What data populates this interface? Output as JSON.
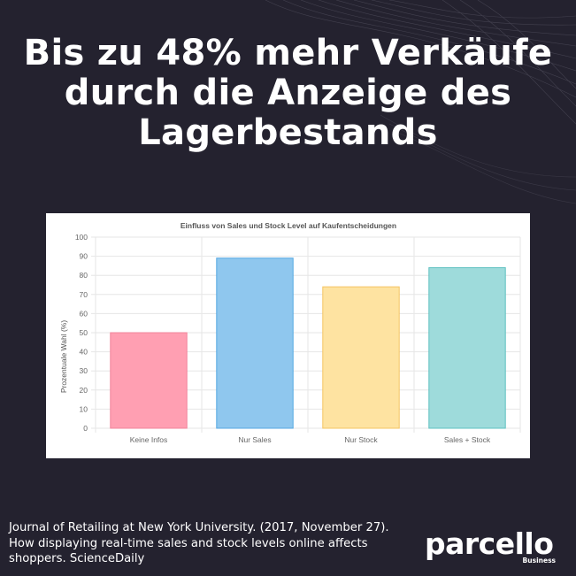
{
  "headline": {
    "line1": "Bis zu 48% mehr Verkäufe",
    "line2": "durch die Anzeige des",
    "line3": "Lagerbestands"
  },
  "chart_data": {
    "type": "bar",
    "title": "Einfluss von Sales und Stock Level auf Kaufentscheidungen",
    "xlabel": "",
    "ylabel": "Prozentuale Wahl (%)",
    "ylim": [
      0,
      100
    ],
    "yticks": [
      0,
      10,
      20,
      30,
      40,
      50,
      60,
      70,
      80,
      90,
      100
    ],
    "grid": true,
    "categories": [
      "Keine Infos",
      "Nur Sales",
      "Nur Stock",
      "Sales + Stock"
    ],
    "values": [
      50,
      89,
      74,
      84
    ],
    "colors": {
      "fills": [
        "#ff9fb2",
        "#8fc7ee",
        "#fee3a1",
        "#9edbdb"
      ],
      "strokes": [
        "#f2849b",
        "#54a7e2",
        "#f4c462",
        "#5ec0c0"
      ]
    }
  },
  "citation": "Journal of Retailing at New York University. (2017, November 27). How displaying real-time sales and stock levels online affects shoppers. ScienceDaily",
  "logo": {
    "word": "parcello",
    "sub": "Business"
  },
  "colors": {
    "background": "#24222f",
    "text": "#ffffff"
  }
}
